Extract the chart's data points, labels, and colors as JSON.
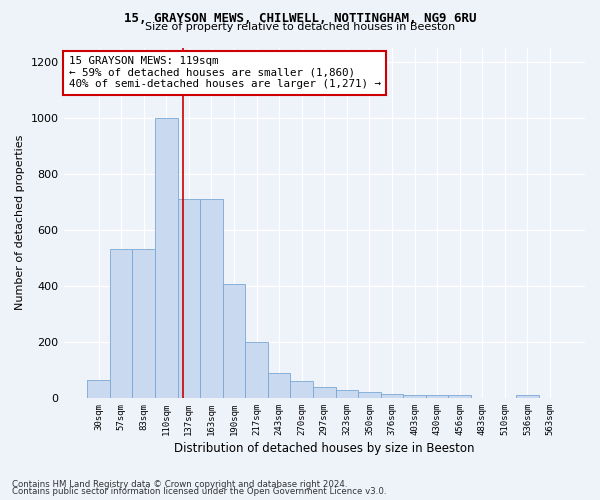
{
  "title_line1": "15, GRAYSON MEWS, CHILWELL, NOTTINGHAM, NG9 6RU",
  "title_line2": "Size of property relative to detached houses in Beeston",
  "xlabel": "Distribution of detached houses by size in Beeston",
  "ylabel": "Number of detached properties",
  "categories": [
    "30sqm",
    "57sqm",
    "83sqm",
    "110sqm",
    "137sqm",
    "163sqm",
    "190sqm",
    "217sqm",
    "243sqm",
    "270sqm",
    "297sqm",
    "323sqm",
    "350sqm",
    "376sqm",
    "403sqm",
    "430sqm",
    "456sqm",
    "483sqm",
    "510sqm",
    "536sqm",
    "563sqm"
  ],
  "values": [
    65,
    530,
    530,
    1000,
    710,
    710,
    405,
    200,
    90,
    60,
    40,
    30,
    20,
    15,
    10,
    10,
    10,
    0,
    0,
    10,
    0
  ],
  "bar_color": "#c9d9f0",
  "bar_edge_color": "#7aa8d4",
  "vline_x": 3.72,
  "vline_color": "#cc0000",
  "annotation_text": "15 GRAYSON MEWS: 119sqm\n← 59% of detached houses are smaller (1,860)\n40% of semi-detached houses are larger (1,271) →",
  "annotation_box_color": "white",
  "annotation_box_edge": "#cc0000",
  "ylim": [
    0,
    1250
  ],
  "yticks": [
    0,
    200,
    400,
    600,
    800,
    1000,
    1200
  ],
  "footer_line1": "Contains HM Land Registry data © Crown copyright and database right 2024.",
  "footer_line2": "Contains public sector information licensed under the Open Government Licence v3.0.",
  "bg_color": "#eef2f9",
  "plot_bg_color": "#eef2f9",
  "grid_color": "#ffffff"
}
